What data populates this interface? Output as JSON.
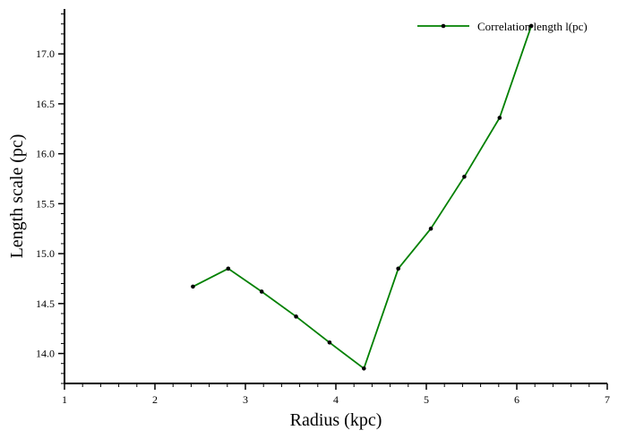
{
  "chart_data": {
    "type": "line",
    "title": "",
    "xlabel": "Radius (kpc)",
    "ylabel": "Length scale (pc)",
    "xlim": [
      1,
      7
    ],
    "ylim": [
      13.7,
      17.45
    ],
    "x_ticks": [
      1,
      2,
      3,
      4,
      5,
      6,
      7
    ],
    "y_ticks": [
      14.0,
      14.5,
      15.0,
      15.5,
      16.0,
      16.5,
      17.0
    ],
    "x_tick_labels": [
      "1",
      "2",
      "3",
      "4",
      "5",
      "6",
      "7"
    ],
    "y_tick_labels": [
      "14.0",
      "14.5",
      "15.0",
      "15.5",
      "16.0",
      "16.5",
      "17.0"
    ],
    "legend_placement": "upper-right",
    "grid": false,
    "series": [
      {
        "name": "Correlation length l(pc)",
        "color": "#008000",
        "marker": "dot",
        "x": [
          2.42,
          2.81,
          3.18,
          3.56,
          3.93,
          4.31,
          4.69,
          5.05,
          5.42,
          5.81,
          6.16
        ],
        "y": [
          14.67,
          14.85,
          14.62,
          14.37,
          14.11,
          13.85,
          14.85,
          15.25,
          15.77,
          16.36,
          17.28
        ]
      }
    ]
  }
}
